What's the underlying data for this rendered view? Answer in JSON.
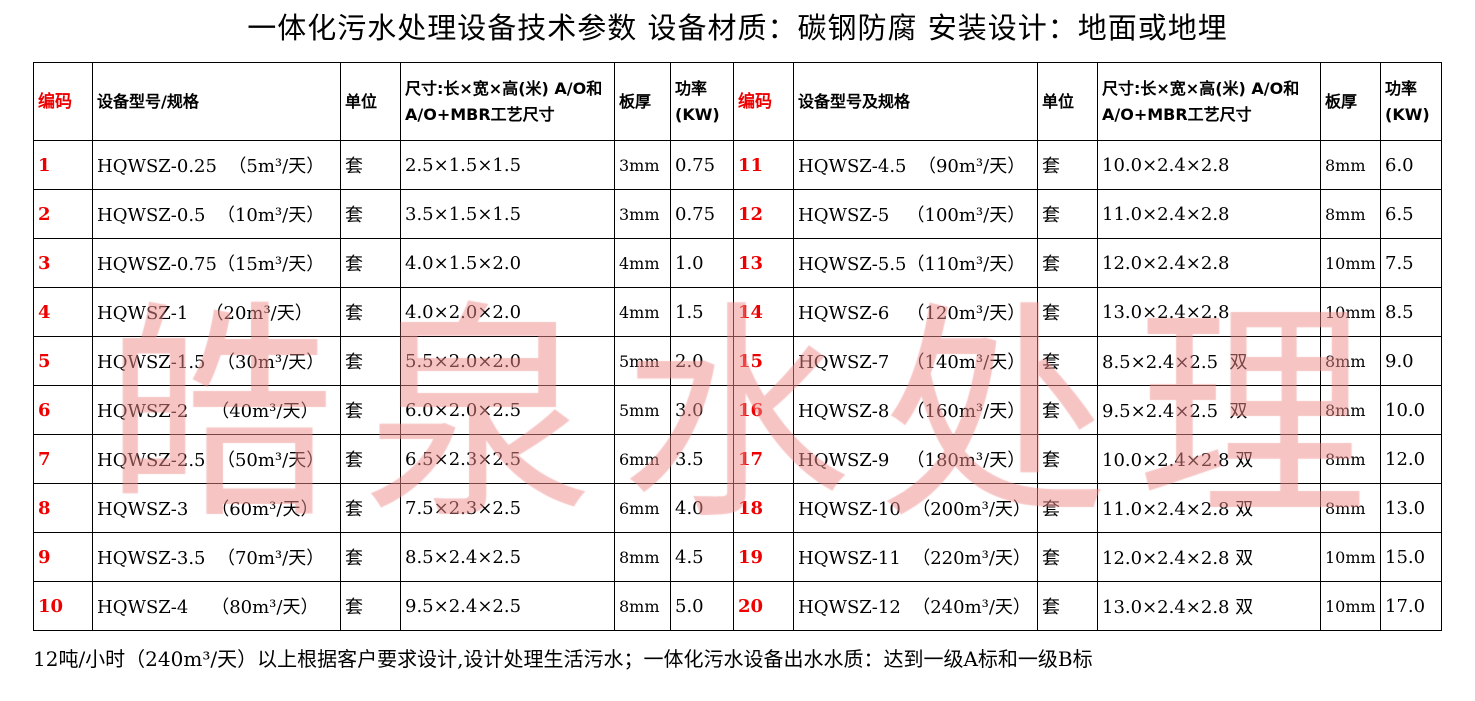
{
  "title": "一体化污水处理设备技术参数    设备材质：碳钢防腐   安装设计：地面或地埋",
  "headers_left": [
    "编码",
    "设备型号/规格",
    "单位",
    "尺寸:长×宽×高(米) A/O和A/O+MBR工艺尺寸",
    "板厚",
    "功率 (KW)"
  ],
  "headers_right": [
    "编码",
    "设备型号及规格",
    "单位",
    "尺寸:长×宽×高(米) A/O和A/O+MBR工艺尺寸",
    "板厚",
    "功率 (KW)"
  ],
  "rows": [
    [
      [
        "1",
        "HQWSZ-0.25  （5m³/天）",
        "套",
        "2.5×1.5×1.5",
        "3mm",
        "0.75"
      ],
      [
        "11",
        "HQWSZ-4.5  （90m³/天）",
        "套",
        "10.0×2.4×2.8",
        "8mm",
        "6.0"
      ]
    ],
    [
      [
        "2",
        "HQWSZ-0.5  （10m³/天）",
        "套",
        "3.5×1.5×1.5",
        "3mm",
        "0.75"
      ],
      [
        "12",
        "HQWSZ-5   （100m³/天）",
        "套",
        "11.0×2.4×2.8",
        "8mm",
        "6.5"
      ]
    ],
    [
      [
        "3",
        "HQWSZ-0.75（15m³/天）",
        "套",
        "4.0×1.5×2.0",
        "4mm",
        "1.0"
      ],
      [
        "13",
        "HQWSZ-5.5（110m³/天）",
        "套",
        "12.0×2.4×2.8",
        "10mm",
        "7.5"
      ]
    ],
    [
      [
        "4",
        "HQWSZ-1   （20m³/天）",
        "套",
        "4.0×2.0×2.0",
        "4mm",
        "1.5"
      ],
      [
        "14",
        "HQWSZ-6   （120m³/天）",
        "套",
        "13.0×2.4×2.8",
        "10mm",
        "8.5"
      ]
    ],
    [
      [
        "5",
        "HQWSZ-1.5  （30m³/天）",
        "套",
        "5.5×2.0×2.0",
        "5mm",
        "2.0"
      ],
      [
        "15",
        "HQWSZ-7   （140m³/天）",
        "套",
        "8.5×2.4×2.5  双",
        "8mm",
        "9.0"
      ]
    ],
    [
      [
        "6",
        "HQWSZ-2    （40m³/天）",
        "套",
        "6.0×2.0×2.5",
        "5mm",
        "3.0"
      ],
      [
        "16",
        "HQWSZ-8   （160m³/天）",
        "套",
        "9.5×2.4×2.5  双",
        "8mm",
        "10.0"
      ]
    ],
    [
      [
        "7",
        "HQWSZ-2.5  （50m³/天）",
        "套",
        "6.5×2.3×2.5",
        "6mm",
        "3.5"
      ],
      [
        "17",
        "HQWSZ-9   （180m³/天）",
        "套",
        "10.0×2.4×2.8 双",
        "8mm",
        "12.0"
      ]
    ],
    [
      [
        "8",
        "HQWSZ-3    （60m³/天）",
        "套",
        "7.5×2.3×2.5",
        "6mm",
        "4.0"
      ],
      [
        "18",
        "HQWSZ-10  （200m³/天）",
        "套",
        "11.0×2.4×2.8 双",
        "8mm",
        "13.0"
      ]
    ],
    [
      [
        "9",
        "HQWSZ-3.5  （70m³/天）",
        "套",
        "8.5×2.4×2.5",
        "8mm",
        "4.5"
      ],
      [
        "19",
        "HQWSZ-11  （220m³/天）",
        "套",
        "12.0×2.4×2.8 双",
        "10mm",
        "15.0"
      ]
    ],
    [
      [
        "10",
        "HQWSZ-4    （80m³/天）",
        "套",
        "9.5×2.4×2.5",
        "8mm",
        "5.0"
      ],
      [
        "20",
        "HQWSZ-12  （240m³/天）",
        "套",
        "13.0×2.4×2.8 双",
        "10mm",
        "17.0"
      ]
    ]
  ],
  "footer": "12吨/小时（240m³/天）以上根据客户要求设计,设计处理生活污水；一体化污水设备出水水质：达到一级A标和一级B标",
  "watermark": "皓泉水处理",
  "colors": {
    "code": "#ee0000",
    "watermark": "#f08a8a"
  }
}
